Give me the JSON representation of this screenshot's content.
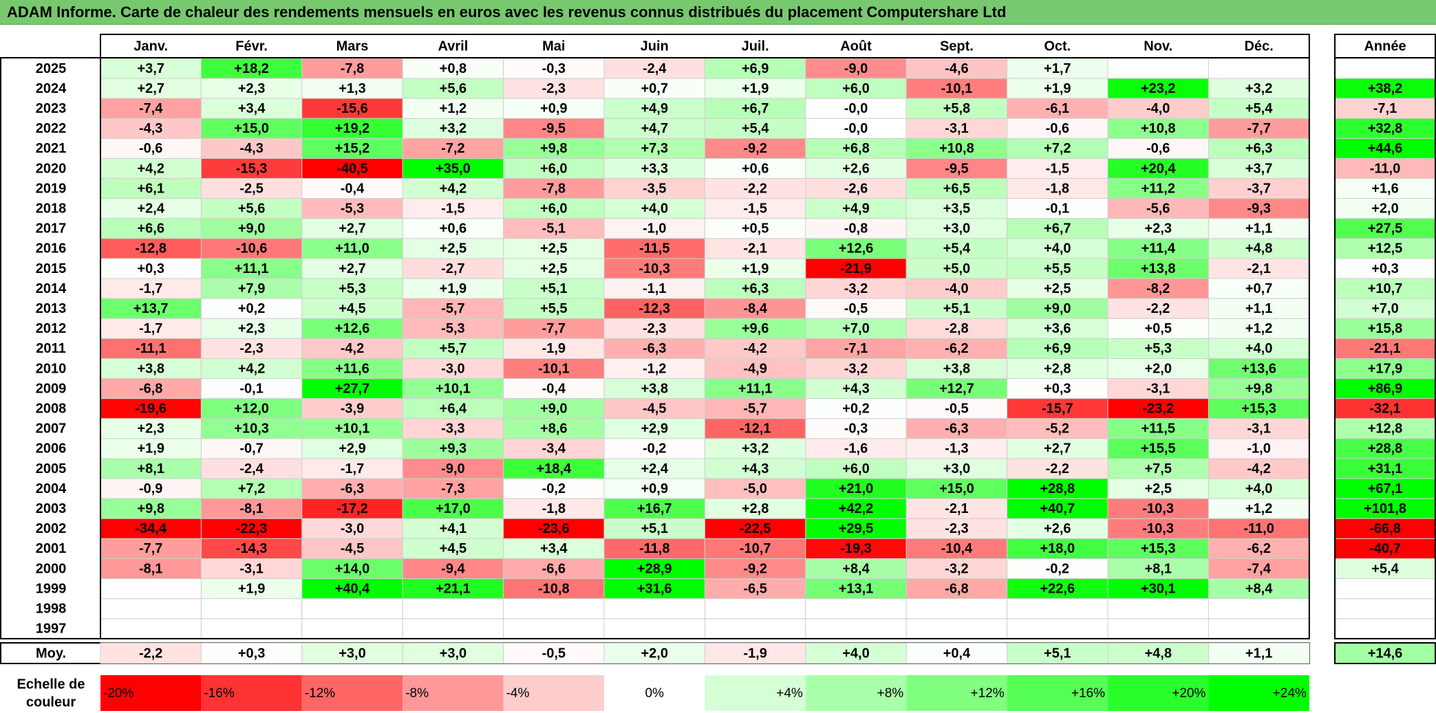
{
  "title": "ADAM Informe. Carte de chaleur des rendements mensuels en euros avec les revenus connus distribués du placement Computershare Ltd",
  "chart_data": {
    "type": "heatmap",
    "title": "ADAM Informe. Carte de chaleur des rendements mensuels en euros avec les revenus connus distribués du placement Computershare Ltd",
    "months": [
      "Janv.",
      "Févr.",
      "Mars",
      "Avril",
      "Mai",
      "Juin",
      "Juil.",
      "Août",
      "Sept.",
      "Oct.",
      "Nov.",
      "Déc."
    ],
    "annual_label": "Année",
    "rows": [
      {
        "year": "2025",
        "values": [
          "+3,7",
          "+18,2",
          "-7,8",
          "+0,8",
          "-0,3",
          "-2,4",
          "+6,9",
          "-9,0",
          "-4,6",
          "+1,7",
          "",
          ""
        ],
        "annual": ""
      },
      {
        "year": "2024",
        "values": [
          "+2,7",
          "+2,3",
          "+1,3",
          "+5,6",
          "-2,3",
          "+0,7",
          "+1,9",
          "+6,0",
          "-10,1",
          "+1,9",
          "+23,2",
          "+3,2"
        ],
        "annual": "+38,2"
      },
      {
        "year": "2023",
        "values": [
          "-7,4",
          "+3,4",
          "-15,6",
          "+1,2",
          "+0,9",
          "+4,9",
          "+6,7",
          "-0,0",
          "+5,8",
          "-6,1",
          "-4,0",
          "+5,4"
        ],
        "annual": "-7,1"
      },
      {
        "year": "2022",
        "values": [
          "-4,3",
          "+15,0",
          "+19,2",
          "+3,2",
          "-9,5",
          "+4,7",
          "+5,4",
          "-0,0",
          "-3,1",
          "-0,6",
          "+10,8",
          "-7,7"
        ],
        "annual": "+32,8"
      },
      {
        "year": "2021",
        "values": [
          "-0,6",
          "-4,3",
          "+15,2",
          "-7,2",
          "+9,8",
          "+7,3",
          "-9,2",
          "+6,8",
          "+10,8",
          "+7,2",
          "-0,6",
          "+6,3"
        ],
        "annual": "+44,6"
      },
      {
        "year": "2020",
        "values": [
          "+4,2",
          "-15,3",
          "-40,5",
          "+35,0",
          "+6,0",
          "+3,3",
          "+0,6",
          "+2,6",
          "-9,5",
          "-1,5",
          "+20,4",
          "+3,7"
        ],
        "annual": "-11,0"
      },
      {
        "year": "2019",
        "values": [
          "+6,1",
          "-2,5",
          "-0,4",
          "+4,2",
          "-7,8",
          "-3,5",
          "-2,2",
          "-2,6",
          "+6,5",
          "-1,8",
          "+11,2",
          "-3,7"
        ],
        "annual": "+1,6"
      },
      {
        "year": "2018",
        "values": [
          "+2,4",
          "+5,6",
          "-5,3",
          "-1,5",
          "+6,0",
          "+4,0",
          "-1,5",
          "+4,9",
          "+3,5",
          "-0,1",
          "-5,6",
          "-9,3"
        ],
        "annual": "+2,0"
      },
      {
        "year": "2017",
        "values": [
          "+6,6",
          "+9,0",
          "+2,7",
          "+0,6",
          "-5,1",
          "-1,0",
          "+0,5",
          "-0,8",
          "+3,0",
          "+6,7",
          "+2,3",
          "+1,1"
        ],
        "annual": "+27,5"
      },
      {
        "year": "2016",
        "values": [
          "-12,8",
          "-10,6",
          "+11,0",
          "+2,5",
          "+2,5",
          "-11,5",
          "-2,1",
          "+12,6",
          "+5,4",
          "+4,0",
          "+11,4",
          "+4,8"
        ],
        "annual": "+12,5"
      },
      {
        "year": "2015",
        "values": [
          "+0,3",
          "+11,1",
          "+2,7",
          "-2,7",
          "+2,5",
          "-10,3",
          "+1,9",
          "-21,9",
          "+5,0",
          "+5,5",
          "+13,8",
          "-2,1"
        ],
        "annual": "+0,3"
      },
      {
        "year": "2014",
        "values": [
          "-1,7",
          "+7,9",
          "+5,3",
          "+1,9",
          "+5,1",
          "-1,1",
          "+6,3",
          "-3,2",
          "-4,0",
          "+2,5",
          "-8,2",
          "+0,7"
        ],
        "annual": "+10,7"
      },
      {
        "year": "2013",
        "values": [
          "+13,7",
          "+0,2",
          "+4,5",
          "-5,7",
          "+5,5",
          "-12,3",
          "-8,4",
          "-0,5",
          "+5,1",
          "+9,0",
          "-2,2",
          "+1,1"
        ],
        "annual": "+7,0"
      },
      {
        "year": "2012",
        "values": [
          "-1,7",
          "+2,3",
          "+12,6",
          "-5,3",
          "-7,7",
          "-2,3",
          "+9,6",
          "+7,0",
          "-2,8",
          "+3,6",
          "+0,5",
          "+1,2"
        ],
        "annual": "+15,8"
      },
      {
        "year": "2011",
        "values": [
          "-11,1",
          "-2,3",
          "-4,2",
          "+5,7",
          "-1,9",
          "-6,3",
          "-4,2",
          "-7,1",
          "-6,2",
          "+6,9",
          "+5,3",
          "+4,0"
        ],
        "annual": "-21,1"
      },
      {
        "year": "2010",
        "values": [
          "+3,8",
          "+4,2",
          "+11,6",
          "-3,0",
          "-10,1",
          "-1,2",
          "-4,9",
          "-3,2",
          "+3,8",
          "+2,8",
          "+2,0",
          "+13,6"
        ],
        "annual": "+17,9"
      },
      {
        "year": "2009",
        "values": [
          "-6,8",
          "-0,1",
          "+27,7",
          "+10,1",
          "-0,4",
          "+3,8",
          "+11,1",
          "+4,3",
          "+12,7",
          "+0,3",
          "-3,1",
          "+9,8"
        ],
        "annual": "+86,9"
      },
      {
        "year": "2008",
        "values": [
          "-19,6",
          "+12,0",
          "-3,9",
          "+6,4",
          "+9,0",
          "-4,5",
          "-5,7",
          "+0,2",
          "-0,5",
          "-15,7",
          "-23,2",
          "+15,3"
        ],
        "annual": "-32,1"
      },
      {
        "year": "2007",
        "values": [
          "+2,3",
          "+10,3",
          "+10,1",
          "-3,3",
          "+8,6",
          "+2,9",
          "-12,1",
          "-0,3",
          "-6,3",
          "-5,2",
          "+11,5",
          "-3,1"
        ],
        "annual": "+12,8"
      },
      {
        "year": "2006",
        "values": [
          "+1,9",
          "-0,7",
          "+2,9",
          "+9,3",
          "-3,4",
          "-0,2",
          "+3,2",
          "-1,6",
          "-1,3",
          "+2,7",
          "+15,5",
          "-1,0"
        ],
        "annual": "+28,8"
      },
      {
        "year": "2005",
        "values": [
          "+8,1",
          "-2,4",
          "-1,7",
          "-9,0",
          "+18,4",
          "+2,4",
          "+4,3",
          "+6,0",
          "+3,0",
          "-2,2",
          "+7,5",
          "-4,2"
        ],
        "annual": "+31,1"
      },
      {
        "year": "2004",
        "values": [
          "-0,9",
          "+7,2",
          "-6,3",
          "-7,3",
          "-0,2",
          "+0,9",
          "-5,0",
          "+21,0",
          "+15,0",
          "+28,8",
          "+2,5",
          "+4,0"
        ],
        "annual": "+67,1"
      },
      {
        "year": "2003",
        "values": [
          "+9,8",
          "-8,1",
          "-17,2",
          "+17,0",
          "-1,8",
          "+16,7",
          "+2,8",
          "+42,2",
          "-2,1",
          "+40,7",
          "-10,3",
          "+1,2"
        ],
        "annual": "+101,8"
      },
      {
        "year": "2002",
        "values": [
          "-34,4",
          "-22,3",
          "-3,0",
          "+4,1",
          "-23,6",
          "+5,1",
          "-22,5",
          "+29,5",
          "-2,3",
          "+2,6",
          "-10,3",
          "-11,0"
        ],
        "annual": "-66,8"
      },
      {
        "year": "2001",
        "values": [
          "-7,7",
          "-14,3",
          "-4,5",
          "+4,5",
          "+3,4",
          "-11,8",
          "-10,7",
          "-19,3",
          "-10,4",
          "+18,0",
          "+15,3",
          "-6,2"
        ],
        "annual": "-40,7"
      },
      {
        "year": "2000",
        "values": [
          "-8,1",
          "-3,1",
          "+14,0",
          "-9,4",
          "-6,6",
          "+28,9",
          "-9,2",
          "+8,4",
          "-3,2",
          "-0,2",
          "+8,1",
          "-7,4"
        ],
        "annual": "+5,4"
      },
      {
        "year": "1999",
        "values": [
          "",
          "+1,9",
          "+40,4",
          "+21,1",
          "-10,8",
          "+31,6",
          "-6,5",
          "+13,1",
          "-6,8",
          "+22,6",
          "+30,1",
          "+8,4"
        ],
        "annual": ""
      },
      {
        "year": "1998",
        "values": [
          "",
          "",
          "",
          "",
          "",
          "",
          "",
          "",
          "",
          "",
          "",
          ""
        ],
        "annual": ""
      },
      {
        "year": "1997",
        "values": [
          "",
          "",
          "",
          "",
          "",
          "",
          "",
          "",
          "",
          "",
          "",
          ""
        ],
        "annual": ""
      }
    ],
    "average": {
      "label": "Moy.",
      "values": [
        "-2,2",
        "+0,3",
        "+3,0",
        "+3,0",
        "-0,5",
        "+2,0",
        "-1,9",
        "+4,0",
        "+0,4",
        "+5,1",
        "+4,8",
        "+1,1"
      ],
      "annual": "+14,6"
    },
    "scale": {
      "label": "Echelle de couleur",
      "steps": [
        "-20%",
        "-16%",
        "-12%",
        "-8%",
        "-4%",
        "0%",
        "+4%",
        "+8%",
        "+12%",
        "+16%",
        "+20%",
        "+24%"
      ]
    },
    "colors": {
      "negative_max": "#ff0000",
      "zero": "#ffffff",
      "positive_max": "#00ff00"
    }
  }
}
